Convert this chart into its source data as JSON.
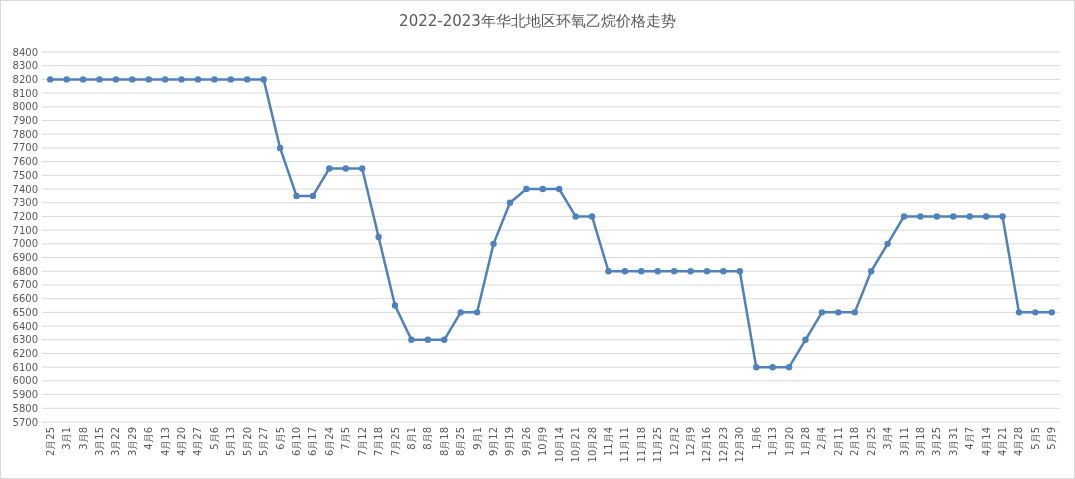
{
  "chart_data": {
    "type": "line",
    "title": "2022-2023年华北地区环氧乙烷价格走势",
    "categories": [
      "2月25",
      "3月1",
      "3月8",
      "3月15",
      "3月22",
      "3月29",
      "4月6",
      "4月13",
      "4月20",
      "4月27",
      "5月6",
      "5月13",
      "5月20",
      "5月27",
      "6月5",
      "6月10",
      "6月17",
      "6月24",
      "7月5",
      "7月12",
      "7月18",
      "7月25",
      "8月1",
      "8月8",
      "8月18",
      "8月25",
      "9月1",
      "9月12",
      "9月19",
      "9月26",
      "10月9",
      "10月14",
      "10月21",
      "10月28",
      "11月4",
      "11月11",
      "11月18",
      "11月25",
      "12月2",
      "12月9",
      "12月16",
      "12月23",
      "12月30",
      "1月6",
      "1月13",
      "1月20",
      "1月28",
      "2月4",
      "2月11",
      "2月18",
      "2月25",
      "3月4",
      "3月11",
      "3月18",
      "3月25",
      "3月31",
      "4月7",
      "4月14",
      "4月21",
      "4月28",
      "5月5",
      "5月9"
    ],
    "values": [
      8200,
      8200,
      8200,
      8200,
      8200,
      8200,
      8200,
      8200,
      8200,
      8200,
      8200,
      8200,
      8200,
      8200,
      7700,
      7350,
      7350,
      7550,
      7550,
      7550,
      7050,
      6550,
      6300,
      6300,
      6300,
      6500,
      6500,
      7000,
      7300,
      7400,
      7400,
      7400,
      7200,
      7200,
      6800,
      6800,
      6800,
      6800,
      6800,
      6800,
      6800,
      6800,
      6800,
      6100,
      6100,
      6100,
      6300,
      6500,
      6500,
      6500,
      6800,
      7000,
      7200,
      7200,
      7200,
      7200,
      7200,
      7200,
      7200,
      6500,
      6500,
      6500
    ],
    "color": "#4f81bd",
    "ylim": [
      5700,
      8400
    ],
    "yticks": [
      5700,
      5800,
      5900,
      6000,
      6100,
      6200,
      6300,
      6400,
      6500,
      6600,
      6700,
      6800,
      6900,
      7000,
      7100,
      7200,
      7300,
      7400,
      7500,
      7600,
      7700,
      7800,
      7900,
      8000,
      8100,
      8200,
      8300,
      8400
    ],
    "grid": "y",
    "marker": "circle",
    "line_style": "solid"
  }
}
